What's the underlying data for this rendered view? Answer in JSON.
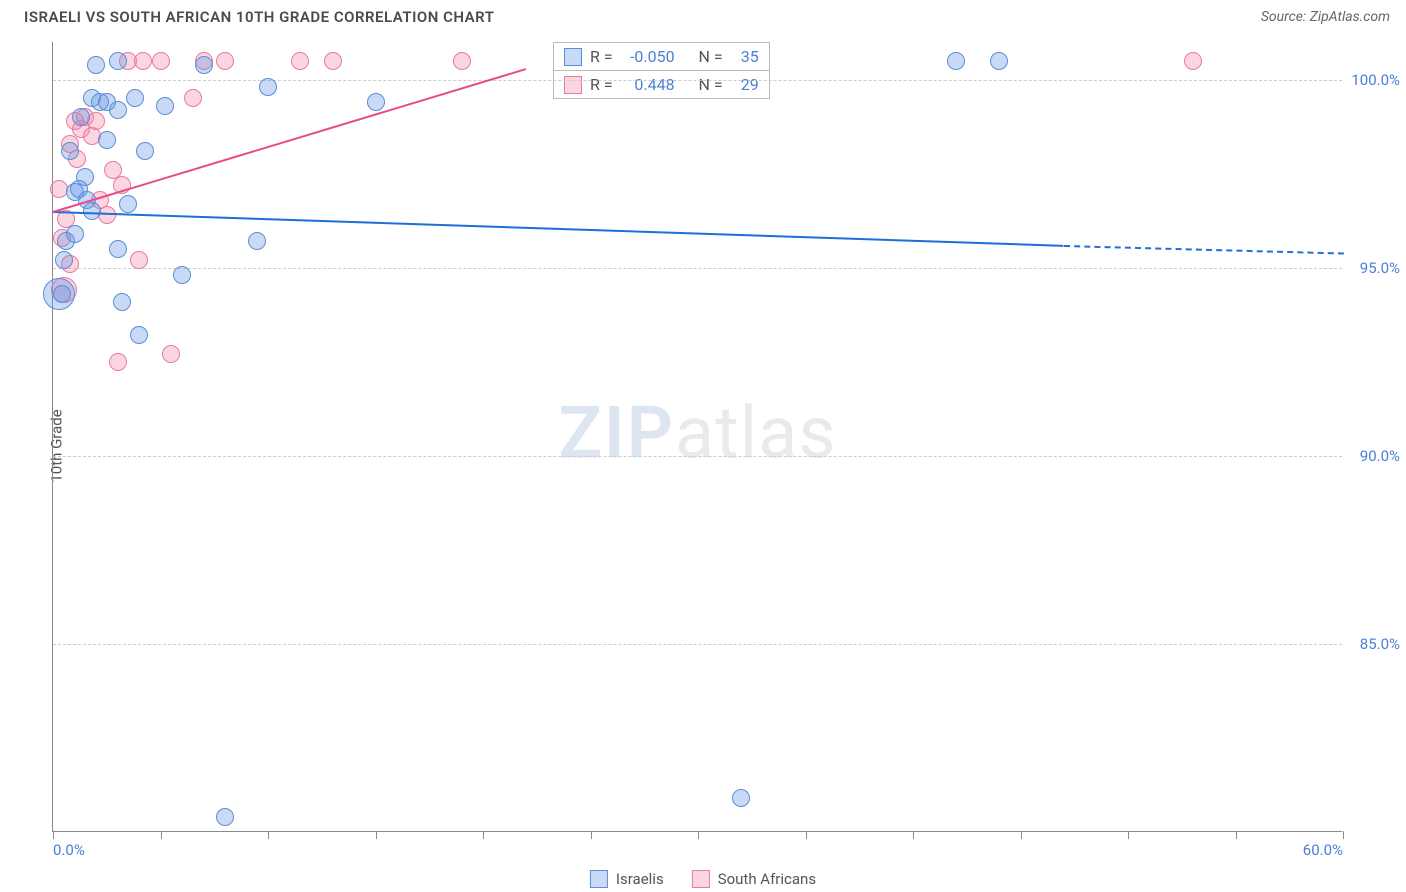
{
  "header": {
    "title": "ISRAELI VS SOUTH AFRICAN 10TH GRADE CORRELATION CHART",
    "source": "Source: ZipAtlas.com"
  },
  "chart": {
    "type": "scatter",
    "y_axis_title": "10th Grade",
    "xlim": [
      0,
      60
    ],
    "ylim": [
      80,
      101
    ],
    "x_ticks": [
      0,
      5,
      10,
      15,
      20,
      25,
      30,
      35,
      40,
      45,
      50,
      55,
      60
    ],
    "x_tick_labels_shown": {
      "0": "0.0%",
      "60": "60.0%"
    },
    "y_gridlines": [
      85,
      90,
      95,
      100
    ],
    "y_tick_labels": {
      "85": "85.0%",
      "90": "90.0%",
      "95": "95.0%",
      "100": "100.0%"
    },
    "grid_color": "#cccccc",
    "axis_color": "#888888",
    "background_color": "#ffffff",
    "series": {
      "israelis": {
        "label": "Israelis",
        "fill_color": "rgba(100,150,230,0.35)",
        "stroke_color": "#5b8ed6",
        "marker_radius": 9,
        "trend_color": "#1f6fd4",
        "trend_start": {
          "x": 0,
          "y": 96.5
        },
        "trend_solid_end": {
          "x": 47,
          "y": 95.6
        },
        "trend_dashed_end": {
          "x": 60,
          "y": 95.4
        },
        "points": [
          {
            "x": 0.3,
            "y": 94.3,
            "r": 16
          },
          {
            "x": 0.4,
            "y": 94.3
          },
          {
            "x": 0.8,
            "y": 98.1
          },
          {
            "x": 0.5,
            "y": 95.2
          },
          {
            "x": 0.6,
            "y": 95.7
          },
          {
            "x": 1.0,
            "y": 95.9
          },
          {
            "x": 1.0,
            "y": 97.0
          },
          {
            "x": 1.2,
            "y": 97.1
          },
          {
            "x": 1.3,
            "y": 99.0
          },
          {
            "x": 1.5,
            "y": 97.4
          },
          {
            "x": 1.6,
            "y": 96.8
          },
          {
            "x": 1.8,
            "y": 99.5
          },
          {
            "x": 1.8,
            "y": 96.5
          },
          {
            "x": 2.0,
            "y": 100.4
          },
          {
            "x": 2.2,
            "y": 99.4
          },
          {
            "x": 2.5,
            "y": 99.4
          },
          {
            "x": 2.5,
            "y": 98.4
          },
          {
            "x": 3.0,
            "y": 100.5
          },
          {
            "x": 3.0,
            "y": 99.2
          },
          {
            "x": 3.0,
            "y": 95.5
          },
          {
            "x": 3.2,
            "y": 94.1
          },
          {
            "x": 3.5,
            "y": 96.7
          },
          {
            "x": 3.8,
            "y": 99.5
          },
          {
            "x": 4.0,
            "y": 93.2
          },
          {
            "x": 4.3,
            "y": 98.1
          },
          {
            "x": 5.2,
            "y": 99.3
          },
          {
            "x": 6.0,
            "y": 94.8
          },
          {
            "x": 7.0,
            "y": 100.4
          },
          {
            "x": 8.0,
            "y": 80.4
          },
          {
            "x": 9.5,
            "y": 95.7
          },
          {
            "x": 10.0,
            "y": 99.8
          },
          {
            "x": 15.0,
            "y": 99.4
          },
          {
            "x": 32.0,
            "y": 80.9
          },
          {
            "x": 42.0,
            "y": 100.5
          },
          {
            "x": 44.0,
            "y": 100.5
          }
        ]
      },
      "south_africans": {
        "label": "South Africans",
        "fill_color": "rgba(244,134,164,0.35)",
        "stroke_color": "#e87ba0",
        "marker_radius": 9,
        "trend_color": "#e84b87",
        "trend_start": {
          "x": 0,
          "y": 96.5
        },
        "trend_solid_end": {
          "x": 22,
          "y": 100.3
        },
        "trend_dashed_end": null,
        "points": [
          {
            "x": 0.3,
            "y": 97.1
          },
          {
            "x": 0.4,
            "y": 95.8
          },
          {
            "x": 0.5,
            "y": 94.4,
            "r": 13
          },
          {
            "x": 0.6,
            "y": 96.3
          },
          {
            "x": 0.8,
            "y": 98.3
          },
          {
            "x": 0.8,
            "y": 95.1
          },
          {
            "x": 1.0,
            "y": 98.9
          },
          {
            "x": 1.1,
            "y": 97.9
          },
          {
            "x": 1.3,
            "y": 98.7
          },
          {
            "x": 1.5,
            "y": 99.0
          },
          {
            "x": 1.8,
            "y": 98.5
          },
          {
            "x": 2.0,
            "y": 98.9
          },
          {
            "x": 2.2,
            "y": 96.8
          },
          {
            "x": 2.5,
            "y": 96.4
          },
          {
            "x": 2.8,
            "y": 97.6
          },
          {
            "x": 3.0,
            "y": 92.5
          },
          {
            "x": 3.2,
            "y": 97.2
          },
          {
            "x": 3.5,
            "y": 100.5
          },
          {
            "x": 4.0,
            "y": 95.2
          },
          {
            "x": 4.2,
            "y": 100.5
          },
          {
            "x": 5.0,
            "y": 100.5
          },
          {
            "x": 5.5,
            "y": 92.7
          },
          {
            "x": 6.5,
            "y": 99.5
          },
          {
            "x": 7.0,
            "y": 100.5
          },
          {
            "x": 8.0,
            "y": 100.5
          },
          {
            "x": 11.5,
            "y": 100.5
          },
          {
            "x": 13.0,
            "y": 100.5
          },
          {
            "x": 19.0,
            "y": 100.5
          },
          {
            "x": 53.0,
            "y": 100.5
          }
        ]
      }
    },
    "stats_box": {
      "rows": [
        {
          "series": "israelis",
          "r_label": "R =",
          "r_value": "-0.050",
          "n_label": "N =",
          "n_value": "35"
        },
        {
          "series": "south_africans",
          "r_label": "R =",
          "r_value": "0.448",
          "n_label": "N =",
          "n_value": "29"
        }
      ]
    },
    "watermark": {
      "zip": "ZIP",
      "atlas": "atlas"
    }
  },
  "legend": {
    "items": [
      {
        "series": "israelis",
        "label": "Israelis"
      },
      {
        "series": "south_africans",
        "label": "South Africans"
      }
    ]
  }
}
